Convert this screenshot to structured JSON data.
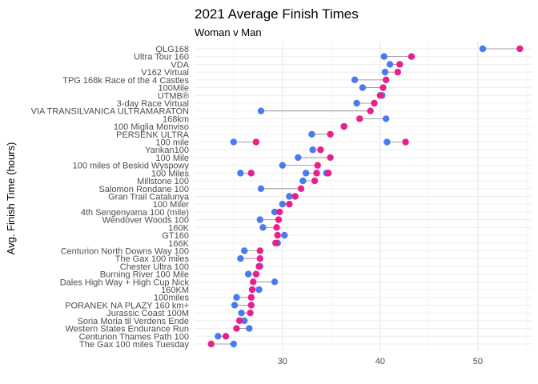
{
  "chart_data": {
    "type": "dumbbell",
    "title": "2021 Average Finish Times",
    "subtitle": "Woman v Man",
    "xlabel": "",
    "ylabel": "Avg. Finish Time (hours)",
    "xlim": [
      21,
      55.5
    ],
    "xticks": [
      30,
      40,
      50
    ],
    "grid": true,
    "colors": {
      "men": "#4a79f2",
      "women": "#ea1e8c",
      "segment": "#888888"
    },
    "categories": [
      "QLG168",
      "Ultra Tour 160",
      "VDA",
      "V162 Virtual",
      "TPG 168k Race of the 4 Castles",
      "100Mile",
      "UTMB®",
      "3-day Race Virtual",
      "VIA TRANSILVANICA ULTRAMARATON",
      "168km",
      "100 Miglia Monviso",
      "PERSENK ULTRA",
      "100 mile",
      "Yarikan100",
      "100 Mile",
      "100 miles of Beskid Wyspowy",
      "100 Miles",
      "Millstone 100",
      "Salomon Rondane 100",
      "Gran Trail Catalunya",
      "100 Miler",
      "4th Sengenyama 100 (mile)",
      "Wendover Woods 100",
      "160K",
      "GT160",
      "166K",
      "Centurion North Downs Way 100",
      "The Gax 100 miles",
      "Chester Ultra 100",
      "Burning River 100 Mile",
      "Dales High Way + High Cup Nick",
      "160KM",
      "100miles",
      "PORANEK NA PLAZY 160 km+",
      "Jurassic Coast 100M",
      "Soria Moria til Verdens Ende",
      "Western States Endurance Run",
      "Centurion Thames Path 100",
      "The Gax 100 miles Tuesday"
    ],
    "series": [
      {
        "points": [
          [
            50.5
          ],
          [
            40.4
          ],
          [
            41.0
          ],
          [
            40.5
          ],
          [
            37.4
          ],
          [
            38.2
          ],
          [
            40.2
          ],
          [
            37.6
          ],
          [
            27.8
          ],
          [
            40.6
          ],
          [
            36.3
          ],
          [
            33.0
          ],
          [
            25.0,
            40.7
          ],
          [
            33.1
          ],
          [
            31.6
          ],
          [
            30.0
          ],
          [
            25.7,
            32.4,
            34.5
          ],
          [
            32.1
          ],
          [
            27.8
          ],
          [
            30.7
          ],
          [
            30.0
          ],
          [
            29.2
          ],
          [
            27.7
          ],
          [
            28.0
          ],
          [
            30.2
          ],
          [
            29.5
          ],
          [
            26.1
          ],
          [
            25.7
          ],
          [
            27.7
          ],
          [
            26.5
          ],
          [
            29.2
          ],
          [
            27.6
          ],
          [
            25.3
          ],
          [
            25.1
          ],
          [
            25.8
          ],
          [
            26.1
          ],
          [
            26.6
          ],
          [
            23.4
          ],
          [
            25.0
          ]
        ]
      },
      {
        "points": [
          [
            54.3
          ],
          [
            43.2
          ],
          [
            42.0
          ],
          [
            41.8
          ],
          [
            40.6
          ],
          [
            40.3
          ],
          [
            40.0
          ],
          [
            39.4
          ],
          [
            39.0
          ],
          [
            37.9
          ],
          [
            36.3
          ],
          [
            34.9
          ],
          [
            27.3,
            42.6
          ],
          [
            33.9
          ],
          [
            34.9
          ],
          [
            33.6
          ],
          [
            26.8,
            33.5,
            34.7
          ],
          [
            33.3
          ],
          [
            31.9
          ],
          [
            31.3
          ],
          [
            30.7
          ],
          [
            29.7
          ],
          [
            29.6
          ],
          [
            29.4
          ],
          [
            29.5
          ],
          [
            29.3
          ],
          [
            27.7
          ],
          [
            27.7
          ],
          [
            27.6
          ],
          [
            27.3
          ],
          [
            27.0
          ],
          [
            26.9
          ],
          [
            26.8
          ],
          [
            26.8
          ],
          [
            26.7
          ],
          [
            25.6
          ],
          [
            25.3
          ],
          [
            24.2
          ],
          [
            22.7
          ]
        ]
      }
    ]
  }
}
